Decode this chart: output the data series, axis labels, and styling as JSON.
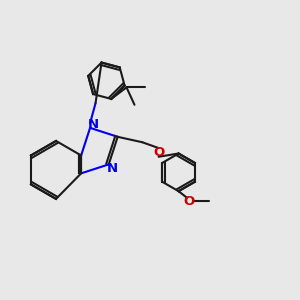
{
  "bg_color": "#e8e8e8",
  "bond_color": "#1a1a1a",
  "N_color": "#0000ee",
  "O_color": "#cc0000",
  "lw": 1.5,
  "fs": 8.5,
  "xlim": [
    -3.2,
    5.0
  ],
  "ylim": [
    -3.5,
    3.8
  ]
}
